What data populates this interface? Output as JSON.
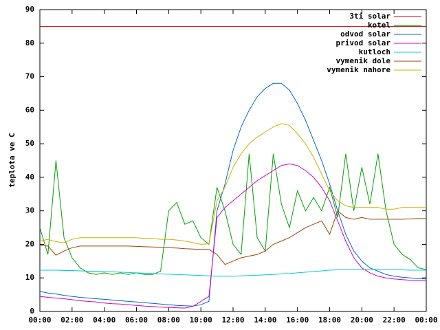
{
  "chart_data": {
    "type": "line",
    "y_label": "teplota ve C",
    "x": [
      0,
      0.5,
      1,
      1.5,
      2,
      2.5,
      3,
      3.5,
      4,
      4.5,
      5,
      5.5,
      6,
      6.5,
      7,
      7.5,
      8,
      8.5,
      9,
      9.5,
      10,
      10.5,
      11,
      11.5,
      12,
      12.5,
      13,
      13.5,
      14,
      14.5,
      15,
      15.5,
      16,
      16.5,
      17,
      17.5,
      18,
      18.5,
      19,
      19.5,
      20,
      20.5,
      21,
      21.5,
      22,
      22.5,
      23,
      23.5,
      24
    ],
    "xlim": [
      0,
      24
    ],
    "xticks": [
      {
        "value": 0,
        "label": "00:00"
      },
      {
        "value": 2,
        "label": "02:00"
      },
      {
        "value": 4,
        "label": "04:00"
      },
      {
        "value": 6,
        "label": "06:00"
      },
      {
        "value": 8,
        "label": "08:00"
      },
      {
        "value": 10,
        "label": "10:00"
      },
      {
        "value": 12,
        "label": "12:00"
      },
      {
        "value": 14,
        "label": "14:00"
      },
      {
        "value": 16,
        "label": "16:00"
      },
      {
        "value": 18,
        "label": "18:00"
      },
      {
        "value": 20,
        "label": "20:00"
      },
      {
        "value": 22,
        "label": "22:00"
      },
      {
        "value": 24,
        "label": "00:00"
      }
    ],
    "ylim": [
      0,
      90
    ],
    "yticks": [
      0,
      10,
      20,
      30,
      40,
      50,
      60,
      70,
      80,
      90
    ],
    "legend": "top-right",
    "series": [
      {
        "name": "3ti solar",
        "color": "#cc0000",
        "values": [
          85,
          85,
          85,
          85,
          85,
          85,
          85,
          85,
          85,
          85,
          85,
          85,
          85,
          85,
          85,
          85,
          85,
          85,
          85,
          85,
          85,
          85,
          85,
          85,
          85,
          85,
          85,
          85,
          85,
          85,
          85,
          85,
          85,
          85,
          85,
          85,
          85,
          85,
          85,
          85,
          85,
          85,
          85,
          85,
          85,
          85,
          85,
          85,
          85
        ]
      },
      {
        "name": "kotel",
        "color": "#00a000",
        "values": [
          25,
          17,
          45,
          22,
          16,
          13,
          11.5,
          11,
          11.5,
          11,
          11.5,
          11,
          11.5,
          11,
          11,
          12,
          30,
          32.5,
          26,
          27,
          22,
          20,
          37,
          30,
          20,
          17,
          47,
          22,
          18,
          47,
          32,
          25,
          36,
          30,
          34,
          30,
          37,
          28,
          47,
          30,
          43,
          32,
          47,
          30,
          20,
          17,
          15.5,
          13,
          12.5
        ]
      },
      {
        "name": "odvod solar",
        "color": "#0066cc",
        "values": [
          6,
          5.5,
          5.2,
          4.8,
          4.5,
          4.2,
          4.0,
          3.8,
          3.6,
          3.4,
          3.2,
          3.0,
          2.8,
          2.6,
          2.4,
          2.2,
          2.0,
          1.8,
          1.7,
          1.6,
          2.0,
          3.0,
          30,
          38,
          48,
          55,
          60,
          64,
          66.5,
          68,
          68,
          66,
          62,
          57,
          51,
          45,
          38,
          30,
          23,
          18,
          15,
          13,
          12,
          11,
          10.5,
          10.2,
          10,
          9.8,
          9.7
        ]
      },
      {
        "name": "privod solar",
        "color": "#cc00cc",
        "values": [
          4.5,
          4.2,
          4,
          3.8,
          3.5,
          3.2,
          3,
          2.8,
          2.5,
          2.3,
          2.2,
          2,
          1.8,
          1.6,
          1.5,
          1.3,
          1.2,
          1.1,
          1.0,
          1.5,
          3,
          4.5,
          28,
          31,
          33,
          35,
          37,
          39,
          40.5,
          42,
          43.5,
          44,
          43.5,
          42,
          40,
          37,
          33,
          27,
          21,
          16,
          13,
          11.5,
          10.5,
          10,
          9.7,
          9.5,
          9.3,
          9.2,
          9.1
        ]
      },
      {
        "name": "kutloch",
        "color": "#00cccc",
        "values": [
          12.3,
          12.3,
          12.3,
          12.2,
          12.2,
          12.1,
          12.0,
          12.0,
          11.9,
          11.8,
          11.7,
          11.6,
          11.5,
          11.4,
          11.3,
          11.2,
          11.1,
          11.0,
          10.9,
          10.8,
          10.7,
          10.6,
          10.5,
          10.5,
          10.5,
          10.6,
          10.7,
          10.8,
          10.9,
          11.0,
          11.2,
          11.3,
          11.5,
          11.7,
          11.9,
          12.1,
          12.3,
          12.4,
          12.5,
          12.5,
          12.5,
          12.5,
          12.5,
          12.4,
          12.4,
          12.4,
          12.3,
          12.3,
          12.3
        ]
      },
      {
        "name": "vymenik dole",
        "color": "#a04000",
        "values": [
          19.7,
          19.5,
          16.8,
          18,
          19,
          19.5,
          19.5,
          19.5,
          19.5,
          19.5,
          19.5,
          19.5,
          19.4,
          19.3,
          19.2,
          19.1,
          19,
          18.9,
          18.7,
          18.6,
          18.5,
          18.5,
          17,
          14,
          15,
          16,
          16.5,
          17,
          18,
          20,
          21,
          22,
          23.5,
          25,
          26,
          27,
          23,
          30,
          28,
          27.5,
          28,
          27.5,
          27.5,
          27.5,
          27.5,
          27.5,
          27.6,
          27.7,
          27.7
        ]
      },
      {
        "name": "vymenik nahore",
        "color": "#c8b400",
        "values": [
          21,
          21.5,
          20.8,
          20.5,
          21.5,
          22,
          22,
          22,
          22,
          22,
          22,
          22,
          22,
          21.8,
          21.8,
          21.5,
          21.5,
          21.3,
          21,
          20.5,
          20,
          20.2,
          33,
          37,
          43,
          47,
          50,
          52,
          53.5,
          55,
          56,
          55.5,
          53,
          50,
          46,
          41,
          36,
          33,
          31.5,
          31,
          31,
          31,
          31,
          30.5,
          30.5,
          31,
          31,
          31,
          31
        ]
      }
    ]
  }
}
